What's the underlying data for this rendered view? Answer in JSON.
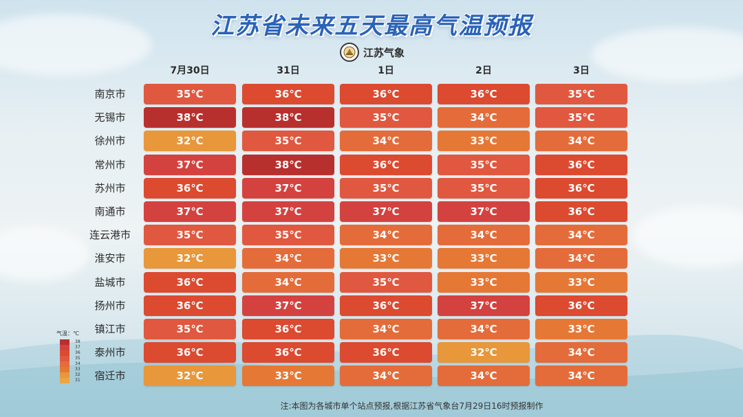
{
  "title": "江苏省未来五天最高气温预报",
  "logo_text": "江苏气象",
  "days": [
    "7月30日",
    "31日",
    "1日",
    "2日",
    "3日"
  ],
  "rows": [
    {
      "city": "南京市",
      "temps": [
        "35℃",
        "36℃",
        "36℃",
        "36℃",
        "35℃"
      ]
    },
    {
      "city": "无锡市",
      "temps": [
        "38℃",
        "38℃",
        "35℃",
        "34℃",
        "35℃"
      ]
    },
    {
      "city": "徐州市",
      "temps": [
        "32℃",
        "35℃",
        "34℃",
        "33℃",
        "34℃"
      ]
    },
    {
      "city": "常州市",
      "temps": [
        "37℃",
        "38℃",
        "36℃",
        "35℃",
        "36℃"
      ]
    },
    {
      "city": "苏州市",
      "temps": [
        "36℃",
        "37℃",
        "35℃",
        "35℃",
        "36℃"
      ]
    },
    {
      "city": "南通市",
      "temps": [
        "37℃",
        "37℃",
        "37℃",
        "37℃",
        "36℃"
      ]
    },
    {
      "city": "连云港市",
      "temps": [
        "35℃",
        "35℃",
        "34℃",
        "34℃",
        "34℃"
      ]
    },
    {
      "city": "淮安市",
      "temps": [
        "32℃",
        "34℃",
        "33℃",
        "33℃",
        "34℃"
      ]
    },
    {
      "city": "盐城市",
      "temps": [
        "36℃",
        "34℃",
        "35℃",
        "33℃",
        "33℃"
      ]
    },
    {
      "city": "扬州市",
      "temps": [
        "36℃",
        "37℃",
        "36℃",
        "37℃",
        "36℃"
      ]
    },
    {
      "city": "镇江市",
      "temps": [
        "35℃",
        "36℃",
        "34℃",
        "34℃",
        "33℃"
      ]
    },
    {
      "city": "泰州市",
      "temps": [
        "36℃",
        "36℃",
        "36℃",
        "32℃",
        "34℃"
      ]
    },
    {
      "city": "宿迁市",
      "temps": [
        "32℃",
        "33℃",
        "34℃",
        "34℃",
        "34℃"
      ]
    }
  ],
  "legend": {
    "title": "气温：℃",
    "levels": [
      "38",
      "37",
      "36",
      "35",
      "34",
      "33",
      "32",
      "31"
    ]
  },
  "colors": {
    "38": "#b8302e",
    "37": "#d4423f",
    "36": "#dc4a30",
    "35": "#e0583f",
    "34": "#e46c3a",
    "33": "#e67836",
    "32": "#e8973a",
    "31": "#eaa646",
    "title": "#2a63b8"
  },
  "footnote": "注:本图为各城市单个站点预报,根据江苏省气象台7月29日16时预报制作"
}
